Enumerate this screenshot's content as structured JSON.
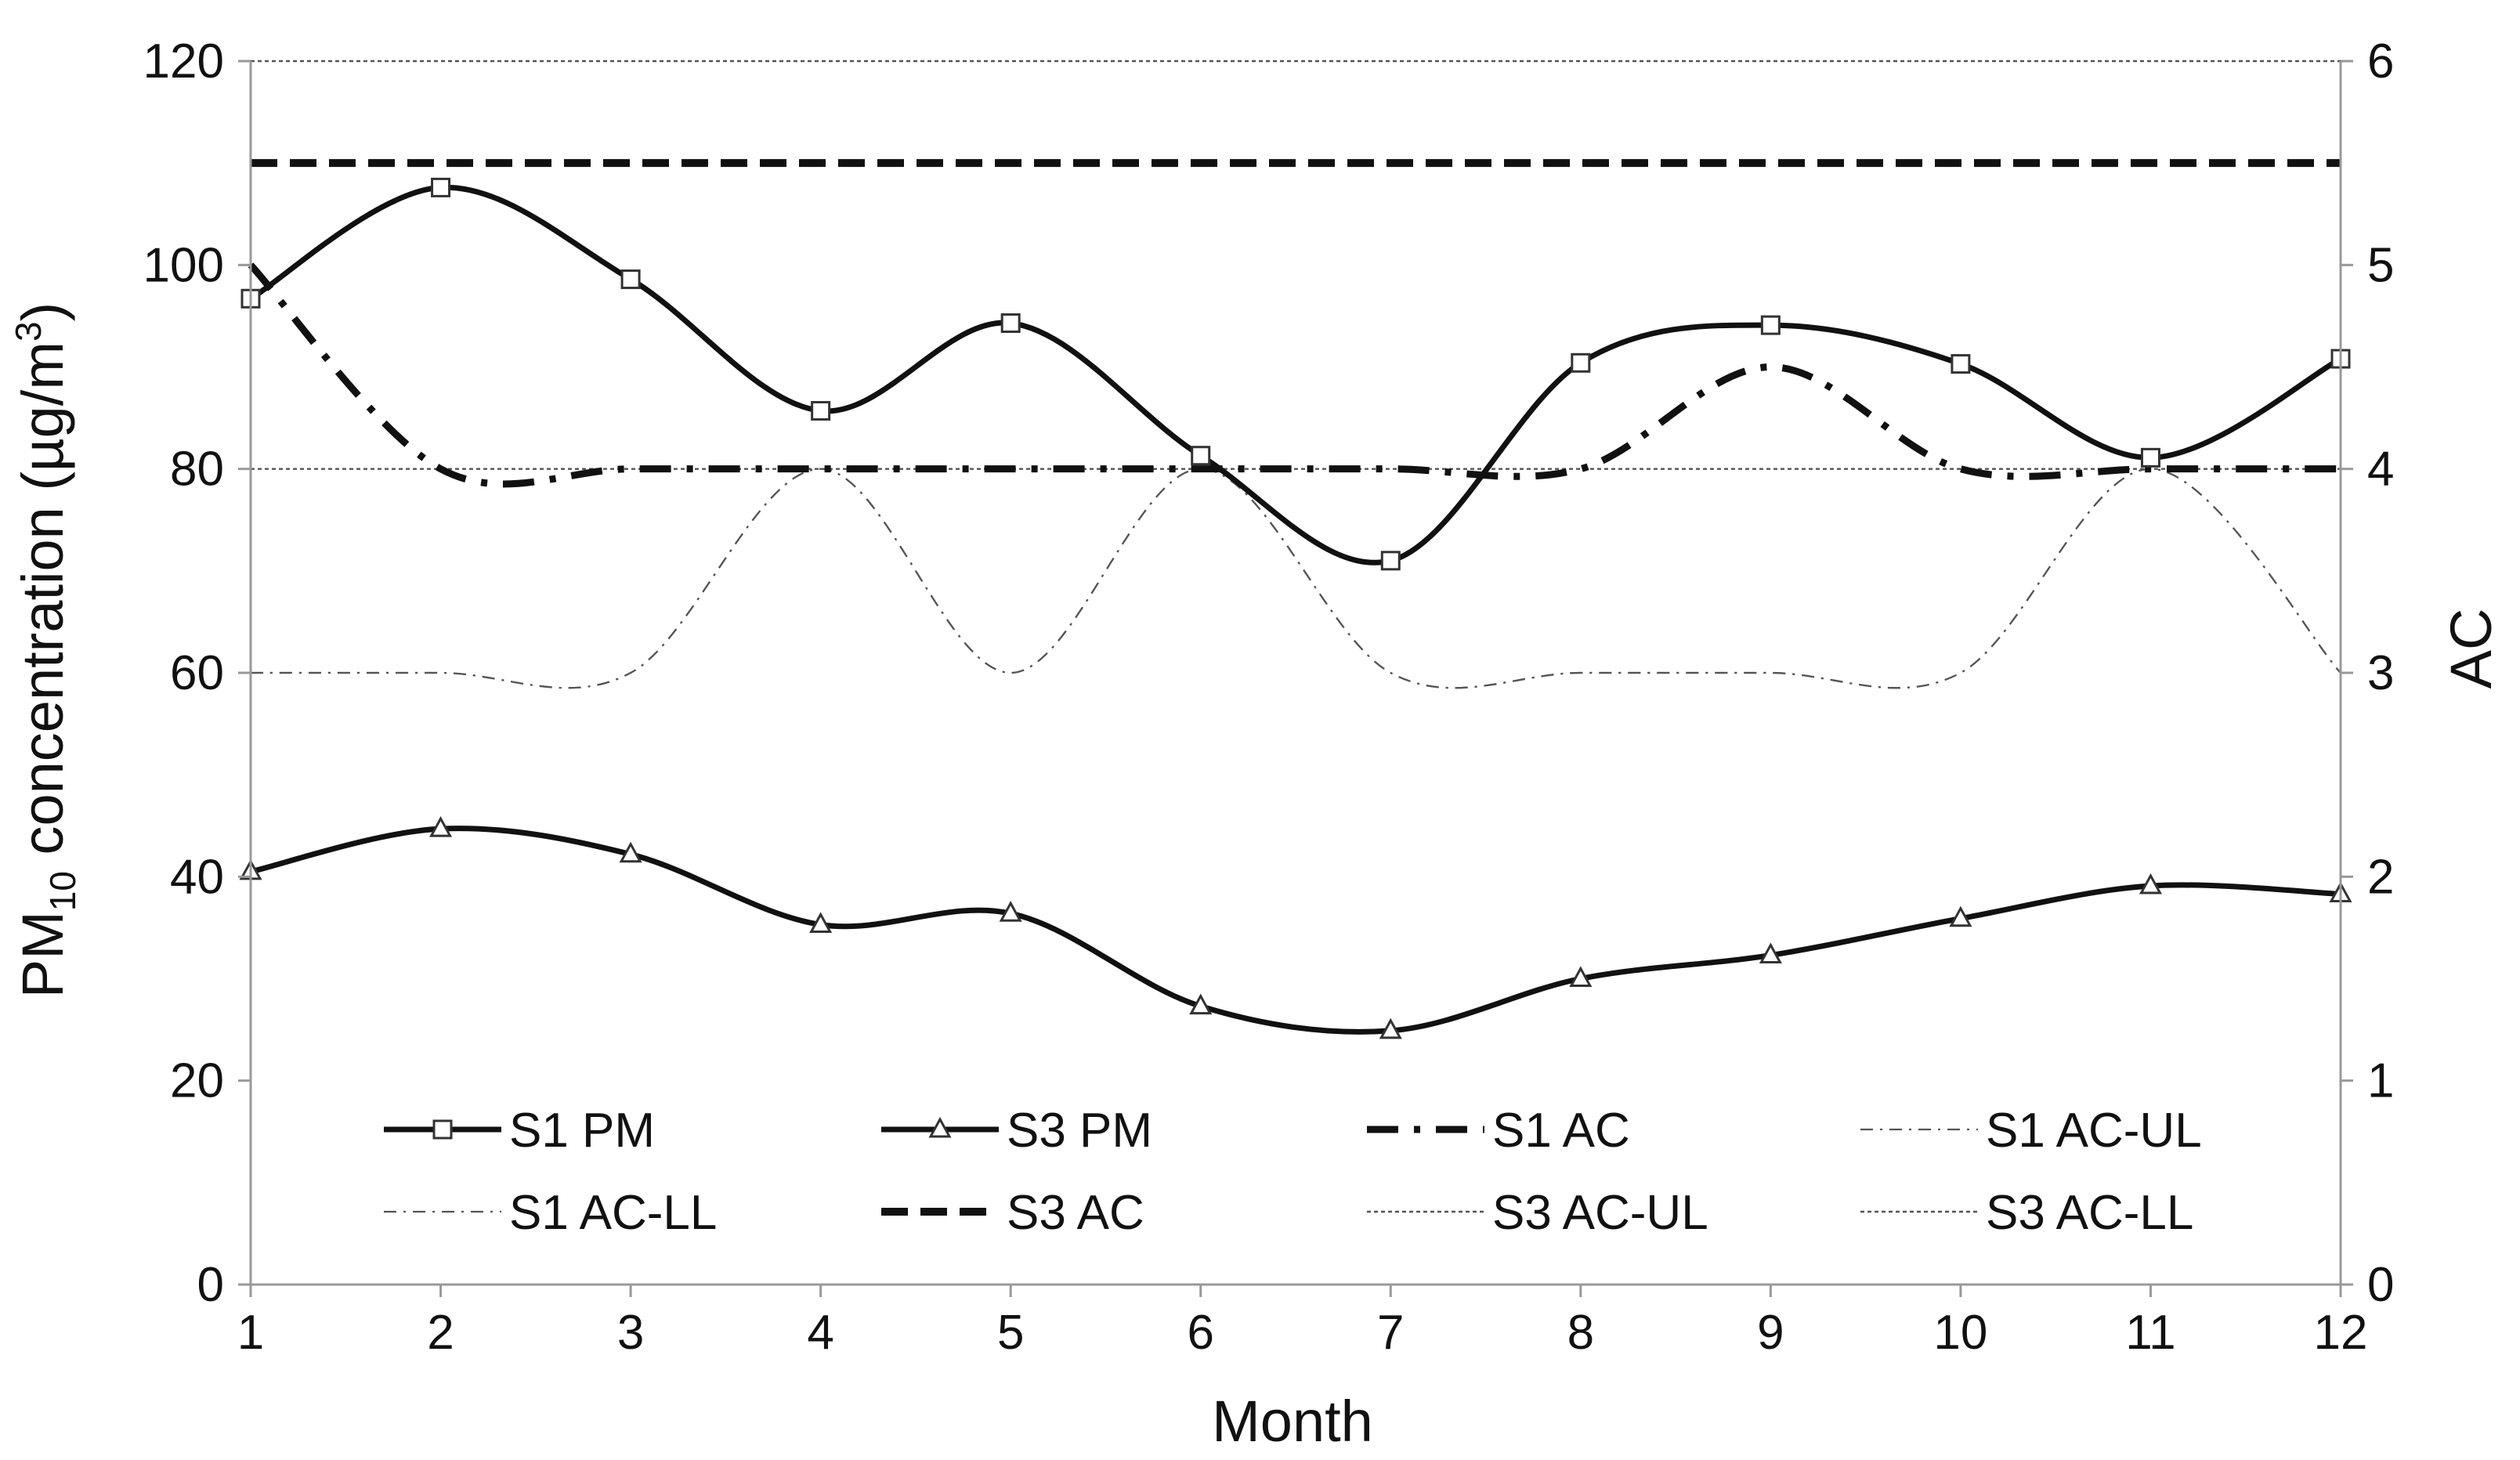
{
  "chart_data": {
    "type": "line",
    "title": "",
    "xlabel": "Month",
    "ylabel": {
      "prefix": "PM",
      "subscript": "10",
      "middle": " concentration (µg/m",
      "superscript": "3",
      "suffix": ")"
    },
    "y2label": "AC",
    "x": [
      1,
      2,
      3,
      4,
      5,
      6,
      7,
      8,
      9,
      10,
      11,
      12
    ],
    "x_ticks": [
      "1",
      "2",
      "3",
      "4",
      "5",
      "6",
      "7",
      "8",
      "9",
      "10",
      "11",
      "12"
    ],
    "ylim": [
      0,
      120
    ],
    "y_ticks": [
      "0",
      "20",
      "40",
      "60",
      "80",
      "100",
      "120"
    ],
    "y2lim": [
      0,
      6
    ],
    "y2_ticks": [
      "0",
      "1",
      "2",
      "3",
      "4",
      "5",
      "6"
    ],
    "legend_position": "bottom-inside",
    "series": [
      {
        "name": "S1 PM",
        "axis": "left",
        "marker": "square",
        "style": "solid-thick",
        "smooth": true,
        "values": [
          96.7,
          107.6,
          98.6,
          85.7,
          94.3,
          81.3,
          71.0,
          90.4,
          94.1,
          90.3,
          81.1,
          90.8
        ]
      },
      {
        "name": "S3 PM",
        "axis": "left",
        "marker": "triangle",
        "style": "solid-thick",
        "smooth": true,
        "values": [
          40.5,
          44.7,
          42.2,
          35.3,
          36.4,
          27.3,
          24.9,
          30.0,
          32.3,
          35.9,
          39.1,
          38.3
        ]
      },
      {
        "name": "S1 AC",
        "axis": "right",
        "marker": "none",
        "style": "dashdot-thick",
        "smooth": true,
        "values": [
          5,
          4,
          4,
          4,
          4,
          4,
          4,
          4,
          4.5,
          4,
          4,
          4
        ]
      },
      {
        "name": "S1 AC-UL",
        "axis": "right",
        "marker": "none",
        "style": "dashdot-thin",
        "smooth": true,
        "values": [
          3,
          3,
          3,
          4,
          3,
          4,
          3,
          3,
          3,
          3,
          4,
          3
        ]
      },
      {
        "name": "S1 AC-LL",
        "axis": "right",
        "marker": "none",
        "style": "dashdot-thin",
        "smooth": true,
        "values": [
          3,
          3,
          3,
          4,
          3,
          4,
          3,
          3,
          3,
          3,
          4,
          3
        ]
      },
      {
        "name": "S3 AC",
        "axis": "right",
        "marker": "none",
        "style": "dashed-thick",
        "smooth": false,
        "values": [
          5.5,
          5.5,
          5.5,
          5.5,
          5.5,
          5.5,
          5.5,
          5.5,
          5.5,
          5.5,
          5.5,
          5.5
        ]
      },
      {
        "name": "S3 AC-UL",
        "axis": "right",
        "marker": "none",
        "style": "dotted-thin",
        "smooth": false,
        "values": [
          6,
          6,
          6,
          6,
          6,
          6,
          6,
          6,
          6,
          6,
          6,
          6
        ]
      },
      {
        "name": "S3 AC-LL",
        "axis": "right",
        "marker": "none",
        "style": "dotted-thin",
        "smooth": false,
        "values": [
          4,
          4,
          4,
          4,
          4,
          4,
          4,
          4,
          4,
          4,
          4,
          4
        ]
      }
    ]
  }
}
